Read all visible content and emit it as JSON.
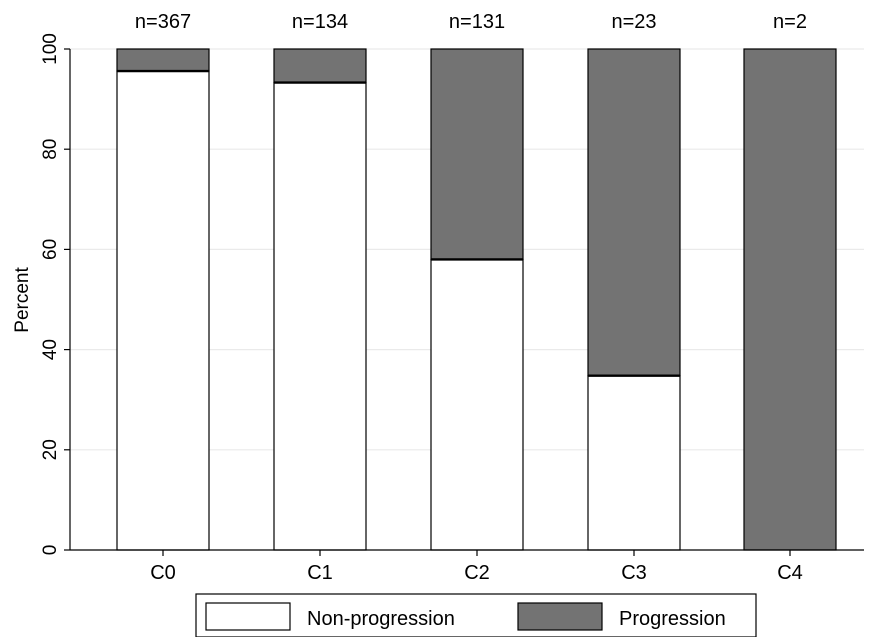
{
  "chart_data": {
    "type": "bar",
    "stacked": true,
    "categories": [
      "C0",
      "C1",
      "C2",
      "C3",
      "C4"
    ],
    "counts": [
      "n=367",
      "n=134",
      "n=131",
      "n=23",
      "n=2"
    ],
    "series": [
      {
        "name": "Non-progression",
        "values": [
          95.6,
          93.3,
          58.0,
          34.8,
          0
        ],
        "color": "#ffffff"
      },
      {
        "name": "Progression",
        "values": [
          4.4,
          6.7,
          42.0,
          65.2,
          100
        ],
        "color": "#737373"
      }
    ],
    "ylabel": "Percent",
    "xlabel": "",
    "ylim": [
      0,
      100
    ],
    "yticks": [
      0,
      20,
      40,
      60,
      80,
      100
    ],
    "grid": true,
    "legend_position": "bottom"
  }
}
